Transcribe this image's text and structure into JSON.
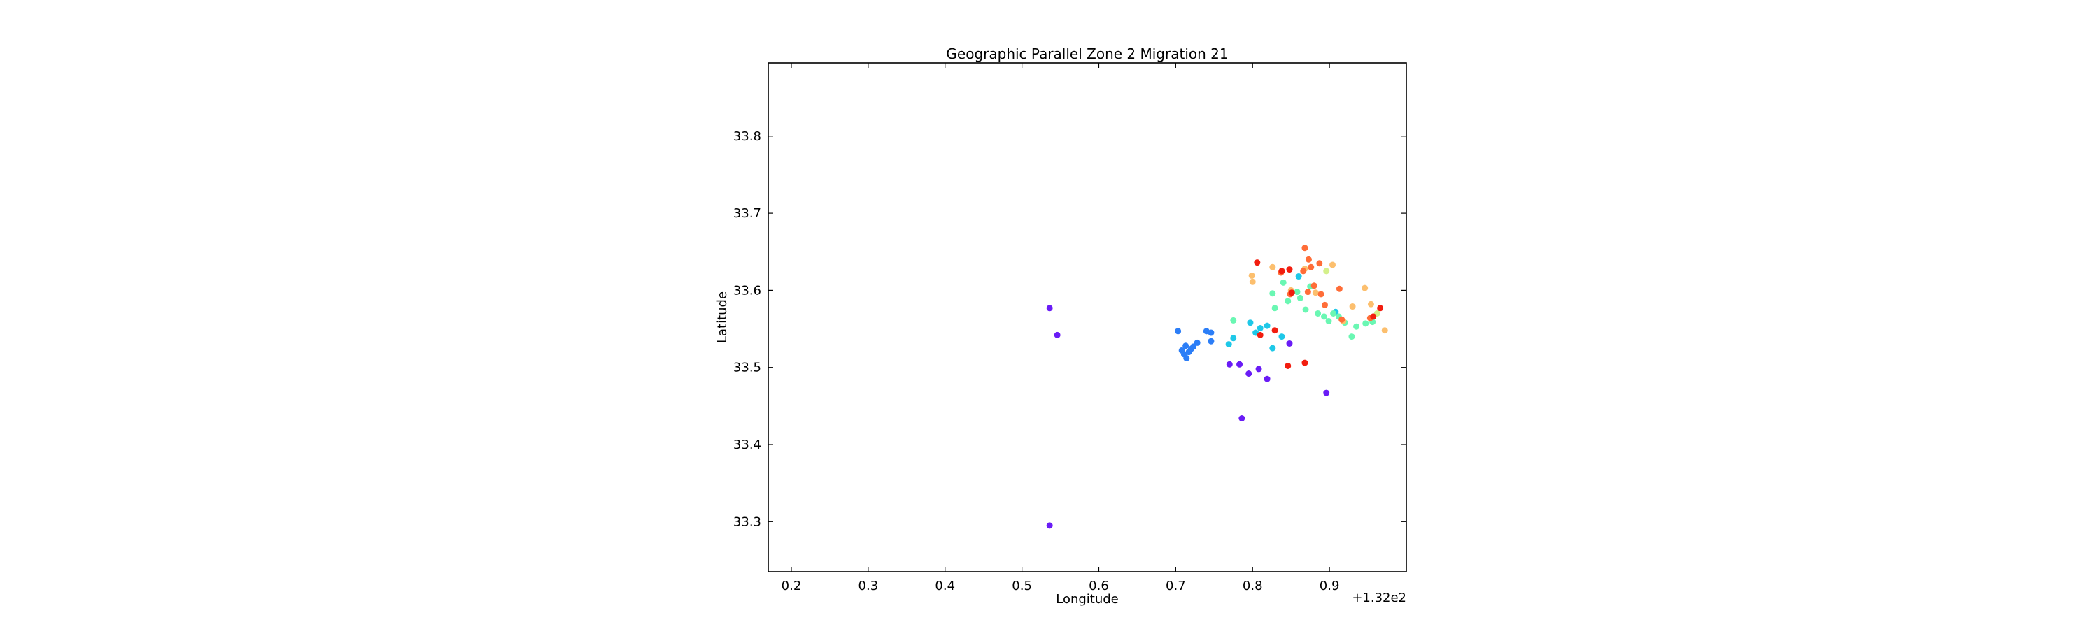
{
  "chart_data": {
    "type": "scatter",
    "title": "Geographic Parallel Zone 2 Migration 21",
    "xlabel": "Longitude",
    "ylabel": "Latitude",
    "x_offset_label": "+1.32e2",
    "xlim": [
      132.17,
      133.0
    ],
    "ylim": [
      33.235,
      33.895
    ],
    "xticks": [
      132.2,
      132.3,
      132.4,
      132.5,
      132.6,
      132.7,
      132.8,
      132.9
    ],
    "xtick_labels": [
      "0.2",
      "0.3",
      "0.4",
      "0.5",
      "0.6",
      "0.7",
      "0.8",
      "0.9"
    ],
    "yticks": [
      33.3,
      33.4,
      33.5,
      33.6,
      33.7,
      33.8
    ],
    "ytick_labels": [
      "33.3",
      "33.4",
      "33.5",
      "33.6",
      "33.7",
      "33.8"
    ],
    "grid": false,
    "colormap": "rainbow",
    "points": [
      {
        "x": 132.536,
        "y": 33.577,
        "color": "#6a1cf6"
      },
      {
        "x": 132.546,
        "y": 33.542,
        "color": "#6a1cf6"
      },
      {
        "x": 132.536,
        "y": 33.295,
        "color": "#6a1cf6"
      },
      {
        "x": 132.786,
        "y": 33.434,
        "color": "#6a1cf6"
      },
      {
        "x": 132.896,
        "y": 33.467,
        "color": "#6a1cf6"
      },
      {
        "x": 132.77,
        "y": 33.504,
        "color": "#6a1cf6"
      },
      {
        "x": 132.783,
        "y": 33.504,
        "color": "#6a1cf6"
      },
      {
        "x": 132.795,
        "y": 33.492,
        "color": "#6a1cf6"
      },
      {
        "x": 132.808,
        "y": 33.498,
        "color": "#6a1cf6"
      },
      {
        "x": 132.819,
        "y": 33.485,
        "color": "#6a1cf6"
      },
      {
        "x": 132.848,
        "y": 33.531,
        "color": "#6a1cf6"
      },
      {
        "x": 132.703,
        "y": 33.547,
        "color": "#2c7ef7"
      },
      {
        "x": 132.708,
        "y": 33.522,
        "color": "#2c7ef7"
      },
      {
        "x": 132.711,
        "y": 33.517,
        "color": "#2c7ef7"
      },
      {
        "x": 132.714,
        "y": 33.512,
        "color": "#2c7ef7"
      },
      {
        "x": 132.717,
        "y": 33.52,
        "color": "#2c7ef7"
      },
      {
        "x": 132.72,
        "y": 33.524,
        "color": "#2c7ef7"
      },
      {
        "x": 132.723,
        "y": 33.527,
        "color": "#2c7ef7"
      },
      {
        "x": 132.713,
        "y": 33.528,
        "color": "#2c7ef7"
      },
      {
        "x": 132.728,
        "y": 33.532,
        "color": "#2c7ef7"
      },
      {
        "x": 132.74,
        "y": 33.547,
        "color": "#2c7ef7"
      },
      {
        "x": 132.746,
        "y": 33.545,
        "color": "#2c7ef7"
      },
      {
        "x": 132.746,
        "y": 33.534,
        "color": "#2c7ef7"
      },
      {
        "x": 132.775,
        "y": 33.538,
        "color": "#1ec8e8"
      },
      {
        "x": 132.769,
        "y": 33.53,
        "color": "#1ec8e8"
      },
      {
        "x": 132.797,
        "y": 33.558,
        "color": "#1ec8e8"
      },
      {
        "x": 132.804,
        "y": 33.545,
        "color": "#1ec8e8"
      },
      {
        "x": 132.81,
        "y": 33.551,
        "color": "#1ec8e8"
      },
      {
        "x": 132.819,
        "y": 33.554,
        "color": "#1ec8e8"
      },
      {
        "x": 132.826,
        "y": 33.525,
        "color": "#1ec8e8"
      },
      {
        "x": 132.838,
        "y": 33.54,
        "color": "#1ec8e8"
      },
      {
        "x": 132.86,
        "y": 33.618,
        "color": "#1ec8e8"
      },
      {
        "x": 132.908,
        "y": 33.572,
        "color": "#1ec8e8"
      },
      {
        "x": 132.775,
        "y": 33.561,
        "color": "#6af7b3"
      },
      {
        "x": 132.826,
        "y": 33.596,
        "color": "#6af7b3"
      },
      {
        "x": 132.829,
        "y": 33.577,
        "color": "#6af7b3"
      },
      {
        "x": 132.84,
        "y": 33.61,
        "color": "#6af7b3"
      },
      {
        "x": 132.846,
        "y": 33.586,
        "color": "#6af7b3"
      },
      {
        "x": 132.858,
        "y": 33.598,
        "color": "#6af7b3"
      },
      {
        "x": 132.862,
        "y": 33.59,
        "color": "#6af7b3"
      },
      {
        "x": 132.869,
        "y": 33.575,
        "color": "#6af7b3"
      },
      {
        "x": 132.875,
        "y": 33.605,
        "color": "#6af7b3"
      },
      {
        "x": 132.885,
        "y": 33.57,
        "color": "#6af7b3"
      },
      {
        "x": 132.893,
        "y": 33.566,
        "color": "#6af7b3"
      },
      {
        "x": 132.899,
        "y": 33.56,
        "color": "#6af7b3"
      },
      {
        "x": 132.905,
        "y": 33.57,
        "color": "#6af7b3"
      },
      {
        "x": 132.912,
        "y": 33.566,
        "color": "#6af7b3"
      },
      {
        "x": 132.92,
        "y": 33.558,
        "color": "#6af7b3"
      },
      {
        "x": 132.929,
        "y": 33.54,
        "color": "#6af7b3"
      },
      {
        "x": 132.935,
        "y": 33.553,
        "color": "#6af7b3"
      },
      {
        "x": 132.947,
        "y": 33.557,
        "color": "#6af7b3"
      },
      {
        "x": 132.956,
        "y": 33.559,
        "color": "#6af7b3"
      },
      {
        "x": 132.896,
        "y": 33.625,
        "color": "#d4f08a"
      },
      {
        "x": 132.962,
        "y": 33.57,
        "color": "#d4f08a"
      },
      {
        "x": 132.799,
        "y": 33.619,
        "color": "#fcbf6e"
      },
      {
        "x": 132.8,
        "y": 33.611,
        "color": "#fcbf6e"
      },
      {
        "x": 132.826,
        "y": 33.63,
        "color": "#fcbf6e"
      },
      {
        "x": 132.85,
        "y": 33.6,
        "color": "#fcbf6e"
      },
      {
        "x": 132.868,
        "y": 33.628,
        "color": "#fcbf6e"
      },
      {
        "x": 132.882,
        "y": 33.597,
        "color": "#fcbf6e"
      },
      {
        "x": 132.904,
        "y": 33.633,
        "color": "#fcbf6e"
      },
      {
        "x": 132.918,
        "y": 33.56,
        "color": "#fcbf6e"
      },
      {
        "x": 132.93,
        "y": 33.579,
        "color": "#fcbf6e"
      },
      {
        "x": 132.946,
        "y": 33.603,
        "color": "#fcbf6e"
      },
      {
        "x": 132.954,
        "y": 33.582,
        "color": "#fcbf6e"
      },
      {
        "x": 132.972,
        "y": 33.548,
        "color": "#fcbf6e"
      },
      {
        "x": 132.868,
        "y": 33.655,
        "color": "#ff6d38"
      },
      {
        "x": 132.873,
        "y": 33.64,
        "color": "#ff6d38"
      },
      {
        "x": 132.876,
        "y": 33.63,
        "color": "#ff6d38"
      },
      {
        "x": 132.887,
        "y": 33.635,
        "color": "#ff6d38"
      },
      {
        "x": 132.866,
        "y": 33.625,
        "color": "#ff6d38"
      },
      {
        "x": 132.872,
        "y": 33.598,
        "color": "#ff6d38"
      },
      {
        "x": 132.88,
        "y": 33.606,
        "color": "#ff6d38"
      },
      {
        "x": 132.889,
        "y": 33.595,
        "color": "#ff6d38"
      },
      {
        "x": 132.913,
        "y": 33.602,
        "color": "#ff6d38"
      },
      {
        "x": 132.894,
        "y": 33.581,
        "color": "#ff6d38"
      },
      {
        "x": 132.849,
        "y": 33.595,
        "color": "#ff6d38"
      },
      {
        "x": 132.953,
        "y": 33.564,
        "color": "#ff6d38"
      },
      {
        "x": 132.916,
        "y": 33.562,
        "color": "#ff6d38"
      },
      {
        "x": 132.837,
        "y": 33.623,
        "color": "#ff6d38"
      },
      {
        "x": 132.806,
        "y": 33.636,
        "color": "#f21d0f"
      },
      {
        "x": 132.838,
        "y": 33.625,
        "color": "#f21d0f"
      },
      {
        "x": 132.848,
        "y": 33.627,
        "color": "#f21d0f"
      },
      {
        "x": 132.829,
        "y": 33.548,
        "color": "#f21d0f"
      },
      {
        "x": 132.81,
        "y": 33.542,
        "color": "#f21d0f"
      },
      {
        "x": 132.846,
        "y": 33.502,
        "color": "#f21d0f"
      },
      {
        "x": 132.868,
        "y": 33.506,
        "color": "#f21d0f"
      },
      {
        "x": 132.851,
        "y": 33.597,
        "color": "#f21d0f"
      },
      {
        "x": 132.957,
        "y": 33.566,
        "color": "#f21d0f"
      },
      {
        "x": 132.966,
        "y": 33.577,
        "color": "#f21d0f"
      }
    ]
  }
}
